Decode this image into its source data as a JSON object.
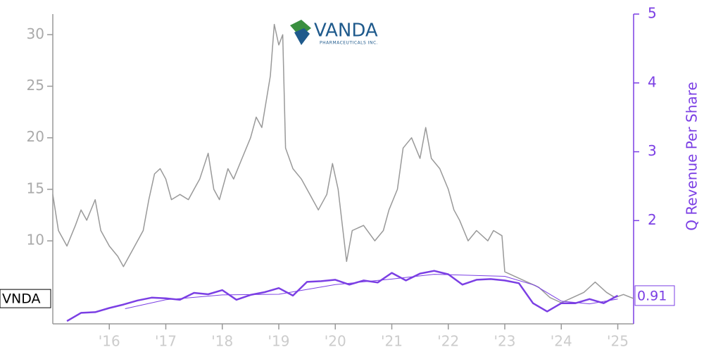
{
  "chart_data": {
    "type": "line",
    "logo": {
      "name": "VANDA",
      "subtitle": "PHARMACEUTICALS INC."
    },
    "y2label": "Q Revenue Per Share",
    "xlim": [
      2015,
      2025.28
    ],
    "xticks": [
      {
        "value": 2016,
        "label": "'16"
      },
      {
        "value": 2017,
        "label": "'17"
      },
      {
        "value": 2018,
        "label": "'18"
      },
      {
        "value": 2019,
        "label": "'19"
      },
      {
        "value": 2020,
        "label": "'20"
      },
      {
        "value": 2021,
        "label": "'21"
      },
      {
        "value": 2022,
        "label": "'22"
      },
      {
        "value": 2023,
        "label": "'23"
      },
      {
        "value": 2024,
        "label": "'24"
      },
      {
        "value": 2025,
        "label": "'25"
      }
    ],
    "ylim": [
      1.95,
      32
    ],
    "yticks": [
      10,
      15,
      20,
      25,
      30
    ],
    "y2lim": [
      0.5,
      5
    ],
    "y2ticks": [
      2,
      3,
      4,
      5
    ],
    "series": [
      {
        "name": "VNDA",
        "color": "#999999",
        "x": [
          2015.0,
          2015.1,
          2015.25,
          2015.4,
          2015.5,
          2015.6,
          2015.75,
          2015.85,
          2016.0,
          2016.15,
          2016.25,
          2016.4,
          2016.5,
          2016.6,
          2016.7,
          2016.8,
          2016.9,
          2017.0,
          2017.1,
          2017.25,
          2017.4,
          2017.5,
          2017.6,
          2017.75,
          2017.85,
          2017.95,
          2018.1,
          2018.2,
          2018.35,
          2018.5,
          2018.6,
          2018.7,
          2018.85,
          2018.92,
          2019.0,
          2019.07,
          2019.12,
          2019.25,
          2019.4,
          2019.55,
          2019.7,
          2019.85,
          2019.95,
          2020.05,
          2020.2,
          2020.3,
          2020.5,
          2020.7,
          2020.85,
          2020.95,
          2021.1,
          2021.2,
          2021.35,
          2021.5,
          2021.6,
          2021.7,
          2021.85,
          2022.0,
          2022.1,
          2022.2,
          2022.35,
          2022.5,
          2022.7,
          2022.8,
          2022.95,
          2023.0,
          2023.2,
          2023.4,
          2023.6,
          2023.8,
          2024.0,
          2024.2,
          2024.4,
          2024.5,
          2024.6,
          2024.8,
          2024.95,
          2025.1,
          2025.28
        ],
        "values": [
          14.5,
          11,
          9.5,
          11.5,
          13,
          12,
          14,
          11,
          9.5,
          8.5,
          7.5,
          9,
          10,
          11,
          14,
          16.5,
          17,
          16,
          14,
          14.5,
          14,
          15,
          16,
          18.5,
          15,
          14,
          17,
          16,
          18,
          20,
          22,
          21,
          26,
          31,
          29,
          30,
          19,
          17,
          16,
          14.5,
          13,
          14.5,
          17.5,
          15,
          8,
          11,
          11.5,
          10,
          11,
          13,
          15,
          19,
          20,
          18,
          21,
          18,
          17,
          15,
          13,
          12,
          10,
          11,
          10,
          11,
          10.5,
          7,
          6.5,
          6,
          5.5,
          4.5,
          4,
          4.5,
          5,
          5.5,
          6,
          5,
          4.5,
          4.8,
          4.4
        ]
      },
      {
        "color": "#7b3fe4",
        "axis": "y2",
        "end_label": 0.91,
        "x": [
          2015.25,
          2015.5,
          2015.75,
          2016.0,
          2016.25,
          2016.5,
          2016.75,
          2017.0,
          2017.25,
          2017.5,
          2017.75,
          2018.0,
          2018.25,
          2018.5,
          2018.75,
          2019.0,
          2019.25,
          2019.5,
          2019.75,
          2020.0,
          2020.25,
          2020.5,
          2020.75,
          2021.0,
          2021.25,
          2021.5,
          2021.75,
          2022.0,
          2022.25,
          2022.5,
          2022.75,
          2023.0,
          2023.25,
          2023.5,
          2023.75,
          2024.0,
          2024.25,
          2024.5,
          2024.75,
          2025.0
        ],
        "values": [
          0.54,
          0.66,
          0.67,
          0.73,
          0.78,
          0.84,
          0.88,
          0.87,
          0.85,
          0.95,
          0.93,
          0.99,
          0.85,
          0.92,
          0.96,
          1.02,
          0.91,
          1.11,
          1.12,
          1.14,
          1.07,
          1.13,
          1.1,
          1.24,
          1.13,
          1.23,
          1.27,
          1.22,
          1.07,
          1.14,
          1.15,
          1.13,
          1.09,
          0.8,
          0.68,
          0.8,
          0.8,
          0.86,
          0.8,
          0.91
        ]
      },
      {
        "color": "#7b3fe4",
        "axis": "y2",
        "thin": true,
        "x": [
          2016.28,
          2017.0,
          2018.0,
          2019.0,
          2020.0,
          2021.0,
          2021.75,
          2023.0,
          2023.53,
          2024.0,
          2024.5,
          2025.0
        ],
        "values": [
          0.72,
          0.85,
          0.92,
          0.93,
          1.07,
          1.15,
          1.22,
          1.19,
          1.06,
          0.83,
          0.79,
          0.86
        ]
      }
    ]
  }
}
